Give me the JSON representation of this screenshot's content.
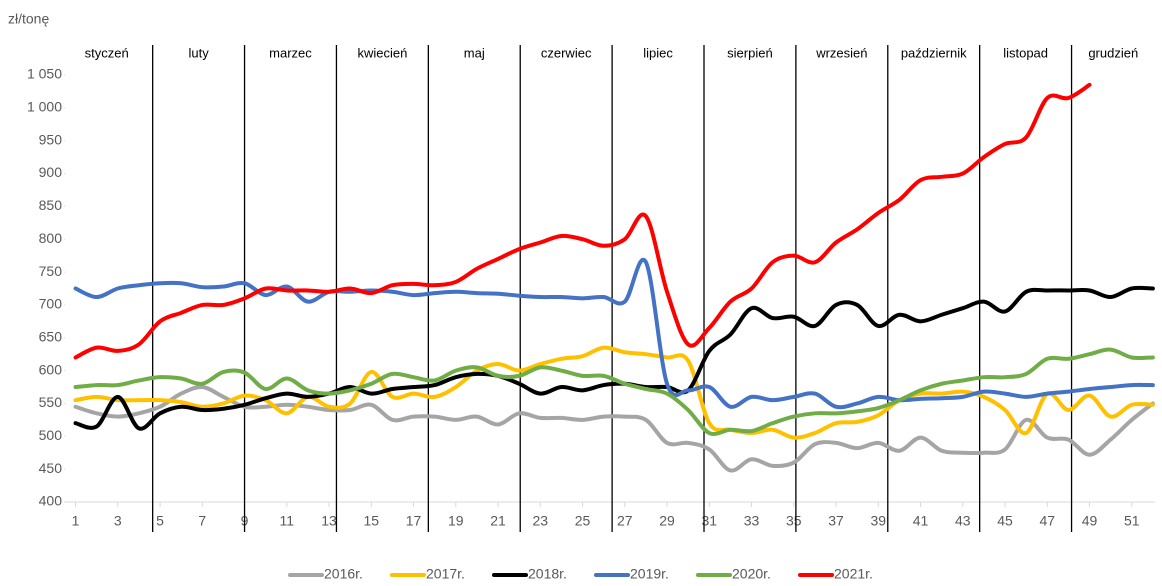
{
  "chart_data": {
    "type": "line",
    "y_label": "zł/tonę",
    "months": [
      "styczeń",
      "luty",
      "marzec",
      "kwiecień",
      "maj",
      "czerwiec",
      "lipiec",
      "sierpień",
      "wrzesień",
      "październik",
      "listopad",
      "grudzień"
    ],
    "x": [
      1,
      2,
      3,
      4,
      5,
      6,
      7,
      8,
      9,
      10,
      11,
      12,
      13,
      14,
      15,
      16,
      17,
      18,
      19,
      20,
      21,
      22,
      23,
      24,
      25,
      26,
      27,
      28,
      29,
      30,
      31,
      32,
      33,
      34,
      35,
      36,
      37,
      38,
      39,
      40,
      41,
      42,
      43,
      44,
      45,
      46,
      47,
      48,
      49,
      50,
      51,
      52
    ],
    "xlim": [
      0.5,
      52.1
    ],
    "xticks": [
      1,
      3,
      5,
      7,
      9,
      11,
      13,
      15,
      17,
      19,
      21,
      23,
      25,
      27,
      29,
      31,
      33,
      35,
      37,
      39,
      41,
      43,
      45,
      47,
      49,
      51
    ],
    "ylim": [
      400,
      1050
    ],
    "yticks": [
      400,
      450,
      500,
      550,
      600,
      650,
      700,
      750,
      800,
      850,
      900,
      950,
      {
        "value": 1000,
        "label": "1 000"
      },
      {
        "value": 1050,
        "label": "1 050"
      }
    ],
    "grid": false,
    "legend": "bottom",
    "series": [
      {
        "name": "2016r.",
        "color": "#a5a5a5",
        "values": [
          545,
          535,
          530,
          535,
          545,
          565,
          575,
          560,
          545,
          545,
          548,
          545,
          540,
          540,
          548,
          525,
          530,
          530,
          525,
          530,
          518,
          535,
          528,
          528,
          525,
          530,
          530,
          525,
          490,
          490,
          480,
          448,
          465,
          455,
          460,
          488,
          490,
          482,
          490,
          478,
          498,
          478,
          475,
          475,
          480,
          525,
          498,
          495,
          472,
          495,
          525,
          550
        ]
      },
      {
        "name": "2017r.",
        "color": "#ffc000",
        "values": [
          555,
          560,
          555,
          555,
          555,
          552,
          545,
          550,
          562,
          555,
          535,
          560,
          545,
          550,
          598,
          560,
          565,
          560,
          575,
          600,
          610,
          600,
          610,
          618,
          622,
          635,
          628,
          625,
          620,
          615,
          520,
          510,
          505,
          510,
          498,
          505,
          520,
          522,
          532,
          555,
          565,
          565,
          568,
          560,
          540,
          505,
          565,
          540,
          562,
          530,
          548,
          548
        ]
      },
      {
        "name": "2018r.",
        "color": "#000000",
        "values": [
          520,
          515,
          560,
          512,
          535,
          545,
          540,
          542,
          548,
          558,
          565,
          560,
          565,
          575,
          565,
          572,
          575,
          578,
          590,
          595,
          592,
          580,
          565,
          575,
          570,
          578,
          580,
          575,
          575,
          570,
          630,
          655,
          695,
          680,
          682,
          668,
          700,
          700,
          668,
          685,
          675,
          685,
          695,
          705,
          690,
          720,
          722,
          722,
          722,
          712,
          725,
          725
        ]
      },
      {
        "name": "2019r.",
        "color": "#4472c4",
        "values": [
          725,
          712,
          725,
          730,
          733,
          733,
          727,
          728,
          733,
          715,
          728,
          705,
          720,
          720,
          722,
          720,
          715,
          718,
          720,
          718,
          717,
          714,
          712,
          712,
          710,
          712,
          705,
          765,
          580,
          570,
          575,
          545,
          560,
          555,
          560,
          565,
          545,
          550,
          560,
          555,
          557,
          558,
          560,
          568,
          565,
          560,
          565,
          568,
          572,
          575,
          578,
          578
        ]
      },
      {
        "name": "2020r.",
        "color": "#70ad47",
        "values": [
          575,
          578,
          578,
          585,
          590,
          588,
          580,
          598,
          597,
          572,
          588,
          570,
          565,
          570,
          580,
          595,
          590,
          585,
          600,
          605,
          592,
          592,
          605,
          600,
          592,
          592,
          580,
          572,
          565,
          540,
          505,
          510,
          508,
          520,
          530,
          535,
          535,
          538,
          543,
          555,
          570,
          580,
          585,
          590,
          590,
          595,
          618,
          618,
          625,
          632,
          620,
          620
        ]
      },
      {
        "name": "2021r.",
        "color": "#ff0000",
        "values": [
          620,
          635,
          630,
          640,
          675,
          688,
          700,
          700,
          710,
          725,
          722,
          722,
          720,
          725,
          718,
          730,
          732,
          730,
          735,
          755,
          770,
          785,
          795,
          805,
          800,
          790,
          800,
          835,
          720,
          640,
          665,
          705,
          725,
          765,
          775,
          765,
          795,
          815,
          840,
          860,
          890,
          895,
          900,
          925,
          945,
          955,
          1015,
          1015,
          1035,
          null,
          null,
          null
        ]
      }
    ]
  }
}
